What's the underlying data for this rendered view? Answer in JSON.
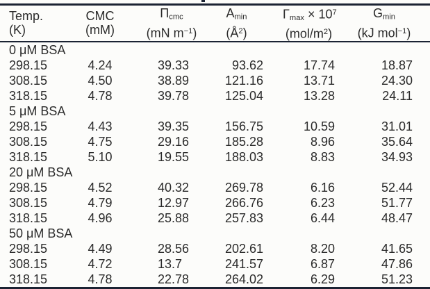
{
  "colors": {
    "rule": "#1b2333",
    "text": "#2b2b2b",
    "background": "#fcfcfa"
  },
  "table": {
    "header": [
      {
        "id": "temp",
        "line1": [
          {
            "t": "Temp."
          }
        ],
        "line2": [
          {
            "t": "(K)"
          }
        ]
      },
      {
        "id": "cmc",
        "line1": [
          {
            "t": "CMC"
          }
        ],
        "line2": [
          {
            "t": "(mM)"
          }
        ]
      },
      {
        "id": "pi-cmc",
        "line1": [
          {
            "t": "Π"
          },
          {
            "t": "cmc",
            "s": "sub"
          }
        ],
        "line2": [
          {
            "t": "(mN m"
          },
          {
            "t": "−1",
            "s": "sup"
          },
          {
            "t": ")"
          }
        ]
      },
      {
        "id": "a-min",
        "line1": [
          {
            "t": "A"
          },
          {
            "t": "min",
            "s": "sub"
          }
        ],
        "line2": [
          {
            "t": "(Å"
          },
          {
            "t": "2",
            "s": "sup"
          },
          {
            "t": ")"
          }
        ]
      },
      {
        "id": "gamma-max",
        "line1": [
          {
            "t": "Γ"
          },
          {
            "t": "max",
            "s": "sub"
          },
          {
            "t": " × 10"
          },
          {
            "t": "7",
            "s": "sup"
          }
        ],
        "line2": [
          {
            "t": "(mol/m"
          },
          {
            "t": "2",
            "s": "sup"
          },
          {
            "t": ")"
          }
        ]
      },
      {
        "id": "g-min",
        "line1": [
          {
            "t": "G"
          },
          {
            "t": "min",
            "s": "sub"
          }
        ],
        "line2": [
          {
            "t": "(kJ mol"
          },
          {
            "t": "−1",
            "s": "sup"
          },
          {
            "t": ")"
          }
        ]
      }
    ],
    "sections": [
      {
        "title": "0 μM BSA",
        "rows": [
          [
            "298.15",
            "4.24",
            "39.33",
            "93.62",
            "17.74",
            "18.87"
          ],
          [
            "308.15",
            "4.50",
            "38.89",
            "121.16",
            "13.71",
            "24.30"
          ],
          [
            "318.15",
            "4.78",
            "39.78",
            "125.04",
            "13.28",
            "24.11"
          ]
        ]
      },
      {
        "title": "5 μM BSA",
        "rows": [
          [
            "298.15",
            "4.43",
            "39.35",
            "156.75",
            "10.59",
            "31.01"
          ],
          [
            "308.15",
            "4.75",
            "29.16",
            "185.28",
            "8.96",
            "35.64"
          ],
          [
            "318.15",
            "5.10",
            "19.55",
            "188.03",
            "8.83",
            "34.93"
          ]
        ]
      },
      {
        "title": "20 μM BSA",
        "rows": [
          [
            "298.15",
            "4.52",
            "40.32",
            "269.78",
            "6.16",
            "52.44"
          ],
          [
            "308.15",
            "4.79",
            "12.97",
            "266.76",
            "6.23",
            "51.77"
          ],
          [
            "318.15",
            "4.96",
            "25.88",
            "257.83",
            "6.44",
            "48.47"
          ]
        ]
      },
      {
        "title": "50 μM BSA",
        "rows": [
          [
            "298.15",
            "4.49",
            "28.56",
            "202.61",
            "8.20",
            "41.65"
          ],
          [
            "308.15",
            "4.72",
            "13.7",
            "241.57",
            "6.87",
            "47.86"
          ],
          [
            "318.15",
            "4.78",
            "22.78",
            "264.02",
            "6.29",
            "51.23"
          ]
        ]
      }
    ]
  }
}
